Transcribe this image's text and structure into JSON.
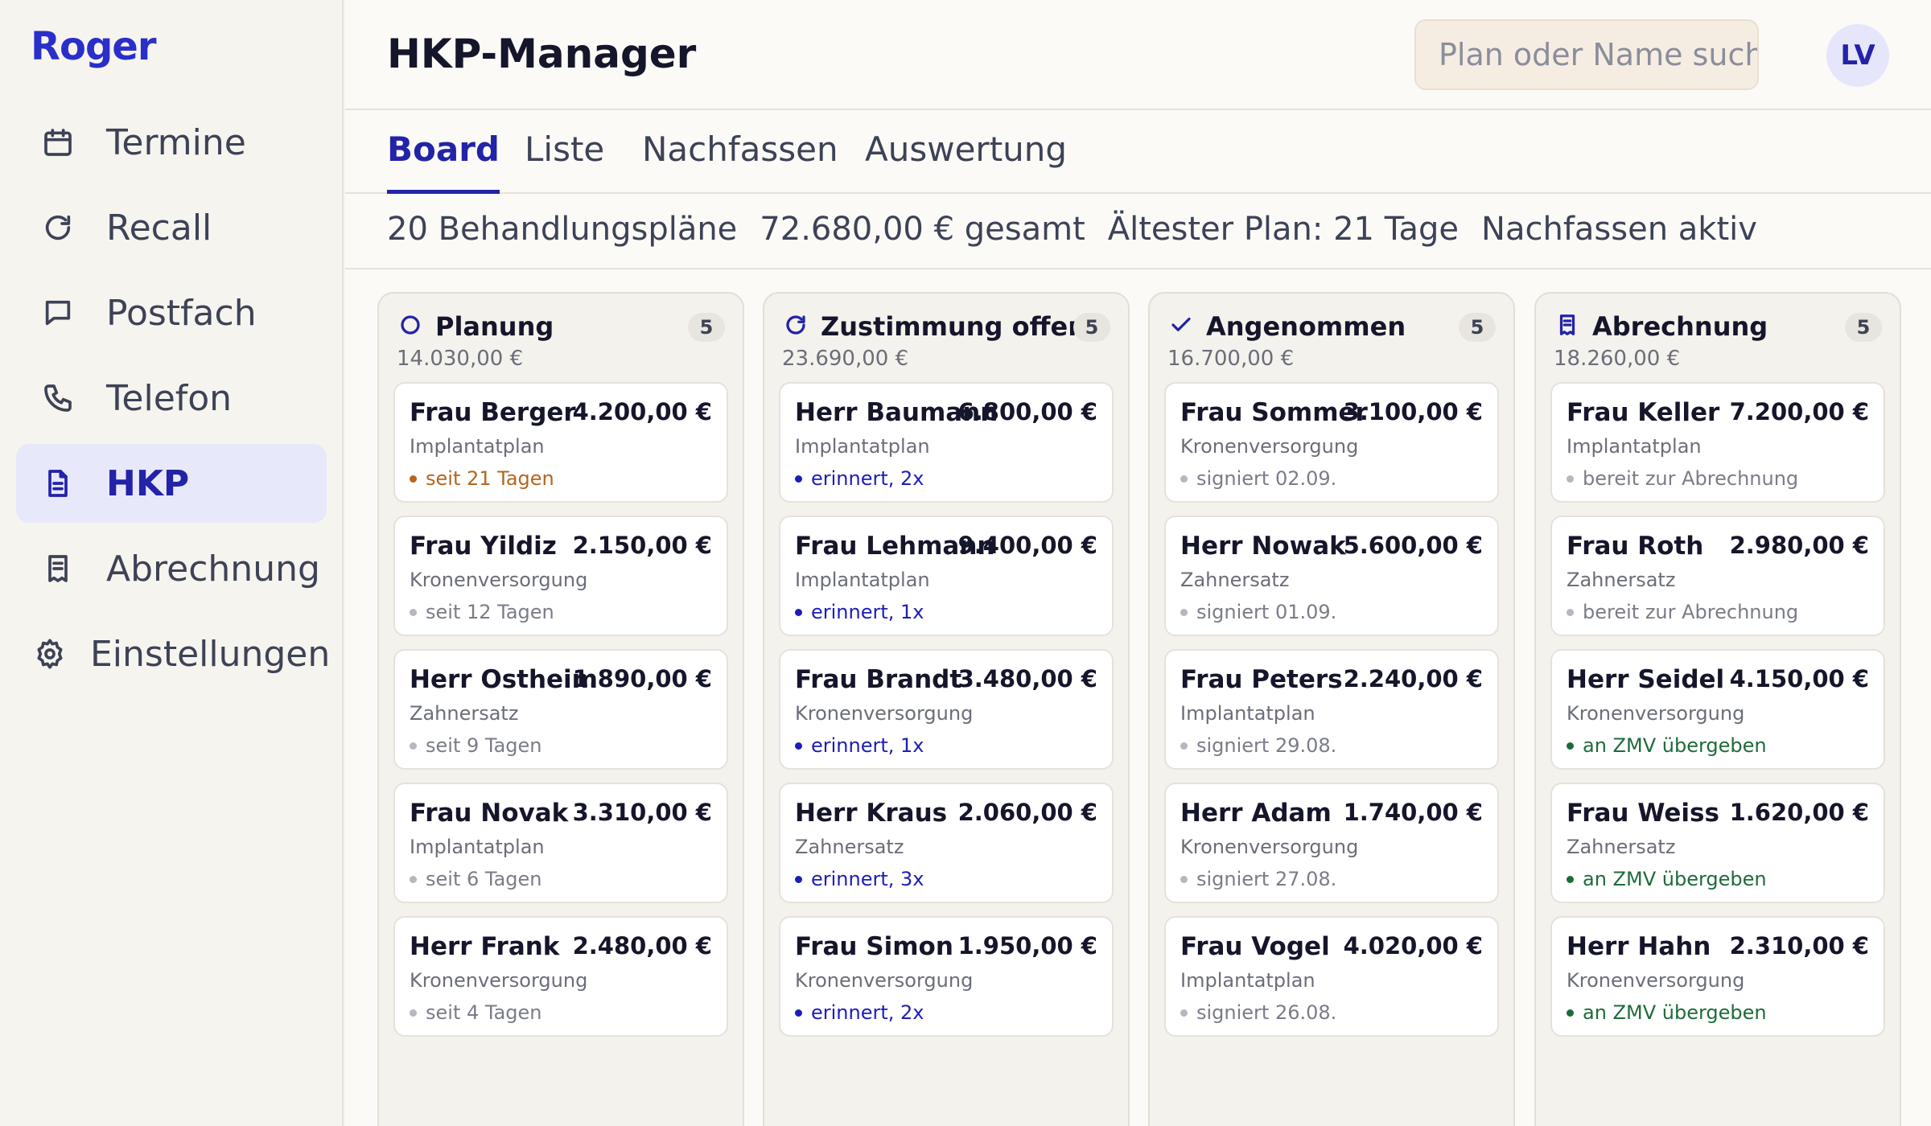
{
  "app": {
    "logo": "Roger"
  },
  "sidebar": {
    "items": [
      {
        "label": "Termine",
        "icon": "calendar-icon",
        "active": false
      },
      {
        "label": "Recall",
        "icon": "refresh-icon",
        "active": false
      },
      {
        "label": "Postfach",
        "icon": "message-icon",
        "active": false
      },
      {
        "label": "Telefon",
        "icon": "phone-icon",
        "active": false
      },
      {
        "label": "HKP",
        "icon": "document-icon",
        "active": true
      },
      {
        "label": "Abrechnung",
        "icon": "receipt-icon",
        "active": false
      },
      {
        "label": "Einstellungen",
        "icon": "gear-icon",
        "active": false
      }
    ]
  },
  "header": {
    "title": "HKP-Manager",
    "search_placeholder": "Plan oder Name suchen",
    "avatar_initials": "LV"
  },
  "tabs": [
    {
      "label": "Board",
      "active": true
    },
    {
      "label": "Liste",
      "active": false
    },
    {
      "label": "Nachfassen",
      "active": false
    },
    {
      "label": "Auswertung",
      "active": false
    }
  ],
  "stats": {
    "plans": "20 Behandlungspläne",
    "total": "72.680,00 € gesamt",
    "oldest": "Ältester Plan: 21 Tage",
    "followup": "Nachfassen aktiv"
  },
  "colors": {
    "accent": "#2323a8",
    "status_warning": "#b5651d",
    "status_neutral": "#b6b7c0",
    "status_reminded": "#1d1db8",
    "status_done": "#1e6b3a"
  },
  "columns": [
    {
      "title": "Planung",
      "icon": "circle-icon",
      "count": "5",
      "sum": "14.030,00 €",
      "cards": [
        {
          "name": "Frau Berger",
          "amount": "4.200,00 €",
          "type": "Implantatplan",
          "status": "seit 21 Tagen",
          "tone": "warning"
        },
        {
          "name": "Frau Yildiz",
          "amount": "2.150,00 €",
          "type": "Kronenversorgung",
          "status": "seit 12 Tagen",
          "tone": "neutral"
        },
        {
          "name": "Herr Ostheim",
          "amount": "1.890,00 €",
          "type": "Zahnersatz",
          "status": "seit 9 Tagen",
          "tone": "neutral"
        },
        {
          "name": "Frau Novak",
          "amount": "3.310,00 €",
          "type": "Implantatplan",
          "status": "seit 6 Tagen",
          "tone": "neutral"
        },
        {
          "name": "Herr Frank",
          "amount": "2.480,00 €",
          "type": "Kronenversorgung",
          "status": "seit 4 Tagen",
          "tone": "neutral"
        }
      ]
    },
    {
      "title": "Zustimmung offen",
      "icon": "refresh-icon",
      "count": "5",
      "sum": "23.690,00 €",
      "cards": [
        {
          "name": "Herr Baumann",
          "amount": "6.800,00 €",
          "type": "Implantatplan",
          "status": "erinnert, 2x",
          "tone": "reminded"
        },
        {
          "name": "Frau Lehmann",
          "amount": "9.400,00 €",
          "type": "Implantatplan",
          "status": "erinnert, 1x",
          "tone": "reminded"
        },
        {
          "name": "Frau Brandt",
          "amount": "3.480,00 €",
          "type": "Kronenversorgung",
          "status": "erinnert, 1x",
          "tone": "reminded"
        },
        {
          "name": "Herr Kraus",
          "amount": "2.060,00 €",
          "type": "Zahnersatz",
          "status": "erinnert, 3x",
          "tone": "reminded"
        },
        {
          "name": "Frau Simon",
          "amount": "1.950,00 €",
          "type": "Kronenversorgung",
          "status": "erinnert, 2x",
          "tone": "reminded"
        }
      ]
    },
    {
      "title": "Angenommen",
      "icon": "check-icon",
      "count": "5",
      "sum": "16.700,00 €",
      "cards": [
        {
          "name": "Frau Sommer",
          "amount": "3.100,00 €",
          "type": "Kronenversorgung",
          "status": "signiert 02.09.",
          "tone": "neutral"
        },
        {
          "name": "Herr Nowak",
          "amount": "5.600,00 €",
          "type": "Zahnersatz",
          "status": "signiert 01.09.",
          "tone": "neutral"
        },
        {
          "name": "Frau Peters",
          "amount": "2.240,00 €",
          "type": "Implantatplan",
          "status": "signiert 29.08.",
          "tone": "neutral"
        },
        {
          "name": "Herr Adam",
          "amount": "1.740,00 €",
          "type": "Kronenversorgung",
          "status": "signiert 27.08.",
          "tone": "neutral"
        },
        {
          "name": "Frau Vogel",
          "amount": "4.020,00 €",
          "type": "Implantatplan",
          "status": "signiert 26.08.",
          "tone": "neutral"
        }
      ]
    },
    {
      "title": "Abrechnung",
      "icon": "receipt-icon",
      "count": "5",
      "sum": "18.260,00 €",
      "cards": [
        {
          "name": "Frau Keller",
          "amount": "7.200,00 €",
          "type": "Implantatplan",
          "status": "bereit zur Abrechnung",
          "tone": "neutral"
        },
        {
          "name": "Frau Roth",
          "amount": "2.980,00 €",
          "type": "Zahnersatz",
          "status": "bereit zur Abrechnung",
          "tone": "neutral"
        },
        {
          "name": "Herr Seidel",
          "amount": "4.150,00 €",
          "type": "Kronenversorgung",
          "status": "an ZMV übergeben",
          "tone": "done"
        },
        {
          "name": "Frau Weiss",
          "amount": "1.620,00 €",
          "type": "Zahnersatz",
          "status": "an ZMV übergeben",
          "tone": "done"
        },
        {
          "name": "Herr Hahn",
          "amount": "2.310,00 €",
          "type": "Kronenversorgung",
          "status": "an ZMV übergeben",
          "tone": "done"
        }
      ]
    }
  ]
}
